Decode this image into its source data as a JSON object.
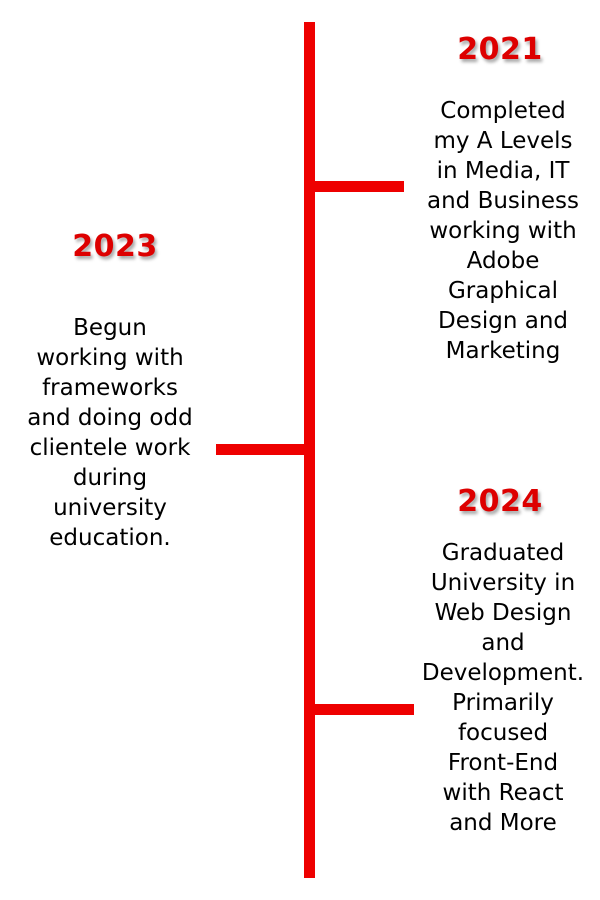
{
  "timeline": {
    "entries": [
      {
        "year": "2021",
        "lines": [
          "Completed",
          "my A Levels",
          "in Media, IT",
          "and Business",
          "working with",
          "Adobe",
          "Graphical",
          "Design and",
          "Marketing"
        ]
      },
      {
        "year": "2023",
        "lines": [
          "Begun",
          "working with",
          "frameworks",
          "and doing odd",
          "clientele work",
          "during",
          "university",
          "education."
        ]
      },
      {
        "year": "2024",
        "lines": [
          "Graduated",
          "University in",
          "Web Design",
          "and",
          "Development.",
          "Primarily",
          "focused",
          "Front-End",
          "with React",
          "and More"
        ]
      }
    ]
  },
  "colors": {
    "accent": "#ee0000",
    "year_text": "#dd0000",
    "body_text": "#000000"
  }
}
